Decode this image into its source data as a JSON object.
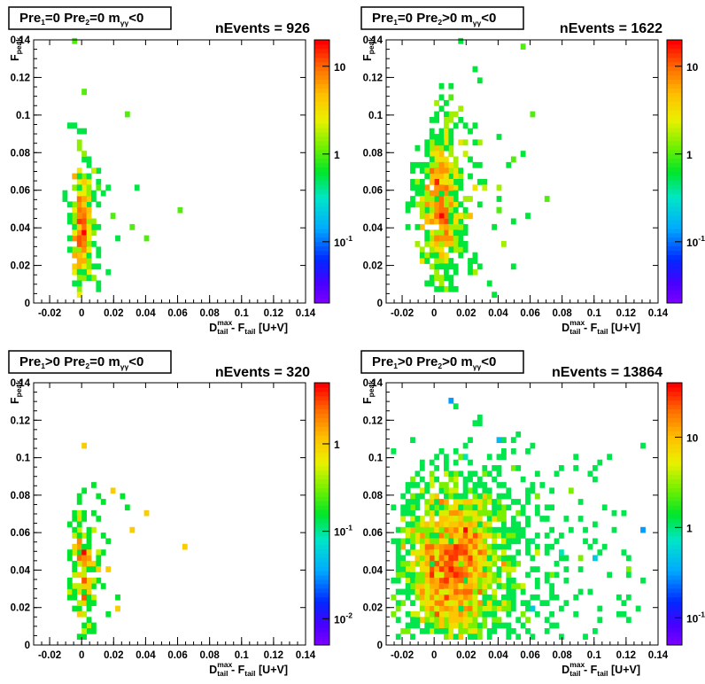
{
  "chart_data": [
    {
      "type": "heatmap",
      "title_parts": {
        "a": "Pre",
        "a_sub": "1",
        "b": "=0  Pre",
        "b_sub": "2",
        "c": "=0  m",
        "c_sub": "γγ",
        "d": "<0"
      },
      "nevents_label": "nEvents = 926",
      "xlabel": {
        "main": "D",
        "sub": "tail",
        "sup": "max",
        "rest": " - F",
        "sub2": "tail",
        "tail": " [U+V]"
      },
      "ylabel": {
        "main": "F",
        "sub": "peak"
      },
      "xlim": [
        -0.03,
        0.14
      ],
      "ylim": [
        0,
        0.14
      ],
      "x_ticks": [
        "-0.02",
        "0",
        "0.02",
        "0.04",
        "0.06",
        "0.08",
        "0.1",
        "0.12",
        "0.14"
      ],
      "y_ticks": [
        "0",
        "0.02",
        "0.04",
        "0.06",
        "0.08",
        "0.1",
        "0.12",
        "0.14"
      ],
      "z_ticks": [
        "10",
        "1",
        "10-1"
      ],
      "z_range": [
        0.02,
        20
      ],
      "bins": [
        [
          0.0,
          0.04,
          10
        ],
        [
          0.0,
          0.035,
          10
        ],
        [
          -0.002,
          0.045,
          8
        ],
        [
          0.002,
          0.03,
          8
        ],
        [
          0.0,
          0.055,
          6
        ],
        [
          -0.002,
          0.025,
          5
        ],
        [
          0.004,
          0.05,
          5
        ],
        [
          0.002,
          0.065,
          4
        ],
        [
          0.006,
          0.04,
          3
        ],
        [
          0.008,
          0.07,
          2
        ],
        [
          0.012,
          0.06,
          1
        ],
        [
          0.02,
          0.045,
          1
        ],
        [
          0.03,
          0.04,
          1
        ],
        [
          0.06,
          0.05,
          1
        ],
        [
          -0.004,
          0.138,
          1
        ],
        [
          0.0,
          0.112,
          1
        ],
        [
          0.028,
          0.1,
          1
        ],
        [
          0.04,
          0.035,
          1
        ]
      ]
    },
    {
      "type": "heatmap",
      "title_parts": {
        "a": "Pre",
        "a_sub": "1",
        "b": "=0  Pre",
        "b_sub": "2",
        "c": ">0  m",
        "c_sub": "γγ",
        "d": "<0"
      },
      "nevents_label": "nEvents = 1622",
      "xlabel": {
        "main": "D",
        "sub": "tail",
        "sup": "max",
        "rest": " - F",
        "sub2": "tail",
        "tail": " [U+V]"
      },
      "ylabel": {
        "main": "F",
        "sub": "peak"
      },
      "xlim": [
        -0.03,
        0.14
      ],
      "ylim": [
        0,
        0.14
      ],
      "x_ticks": [
        "-0.02",
        "0",
        "0.02",
        "0.04",
        "0.06",
        "0.08",
        "0.1",
        "0.12",
        "0.14"
      ],
      "y_ticks": [
        "0",
        "0.02",
        "0.04",
        "0.06",
        "0.08",
        "0.1",
        "0.12",
        "0.14"
      ],
      "z_ticks": [
        "10",
        "1",
        "10-1"
      ],
      "z_range": [
        0.02,
        20
      ],
      "bins": [
        [
          0.004,
          0.05,
          10
        ],
        [
          0.0,
          0.045,
          10
        ],
        [
          0.006,
          0.06,
          8
        ],
        [
          0.002,
          0.035,
          8
        ],
        [
          0.008,
          0.04,
          6
        ],
        [
          0.0,
          0.07,
          6
        ],
        [
          0.01,
          0.055,
          5
        ],
        [
          0.004,
          0.025,
          5
        ],
        [
          0.012,
          0.065,
          3
        ],
        [
          0.016,
          0.045,
          3
        ],
        [
          0.02,
          0.08,
          2
        ],
        [
          0.03,
          0.06,
          2
        ],
        [
          0.04,
          0.05,
          1
        ],
        [
          0.05,
          0.075,
          1
        ],
        [
          0.07,
          0.055,
          1
        ],
        [
          0.01,
          0.11,
          1
        ],
        [
          0.06,
          0.1,
          1
        ],
        [
          0.057,
          0.136,
          1
        ]
      ]
    },
    {
      "type": "heatmap",
      "title_parts": {
        "a": "Pre",
        "a_sub": "1",
        "b": ">0  Pre",
        "b_sub": "2",
        "c": "=0  m",
        "c_sub": "γγ",
        "d": "<0"
      },
      "nevents_label": "nEvents = 320",
      "xlabel": {
        "main": "D",
        "sub": "tail",
        "sup": "max",
        "rest": " - F",
        "sub2": "tail",
        "tail": " [U+V]"
      },
      "ylabel": {
        "main": "F",
        "sub": "peak"
      },
      "xlim": [
        -0.03,
        0.14
      ],
      "ylim": [
        0,
        0.14
      ],
      "x_ticks": [
        "-0.02",
        "0",
        "0.02",
        "0.04",
        "0.06",
        "0.08",
        "0.1",
        "0.12",
        "0.14"
      ],
      "y_ticks": [
        "0",
        "0.02",
        "0.04",
        "0.06",
        "0.08",
        "0.1",
        "0.12",
        "0.14"
      ],
      "z_ticks": [
        "1",
        "10-1",
        "10-2"
      ],
      "z_range": [
        0.005,
        5
      ],
      "bins": [
        [
          0.0,
          0.035,
          3
        ],
        [
          0.0,
          0.025,
          3
        ],
        [
          0.002,
          0.045,
          2
        ],
        [
          -0.002,
          0.055,
          2
        ],
        [
          0.004,
          0.03,
          1
        ],
        [
          0.006,
          0.05,
          1
        ],
        [
          0.01,
          0.04,
          1
        ],
        [
          0.016,
          0.04,
          1
        ],
        [
          0.02,
          0.083,
          1
        ],
        [
          0.03,
          0.06,
          1
        ],
        [
          0.04,
          0.07,
          1
        ],
        [
          0.064,
          0.053,
          1
        ],
        [
          0.002,
          0.105,
          1
        ],
        [
          0.022,
          0.02,
          1
        ]
      ]
    },
    {
      "type": "heatmap",
      "title_parts": {
        "a": "Pre",
        "a_sub": "1",
        "b": ">0  Pre",
        "b_sub": "2",
        "c": ">0  m",
        "c_sub": "γγ",
        "d": "<0"
      },
      "nevents_label": "nEvents = 13864",
      "xlabel": {
        "main": "D",
        "sub": "tail",
        "sup": "max",
        "rest": " - F",
        "sub2": "tail",
        "tail": " [U+V]"
      },
      "ylabel": {
        "main": "F",
        "sub": "peak"
      },
      "xlim": [
        -0.03,
        0.14
      ],
      "ylim": [
        0,
        0.14
      ],
      "x_ticks": [
        "-0.02",
        "0",
        "0.02",
        "0.04",
        "0.06",
        "0.08",
        "0.1",
        "0.12",
        "0.14"
      ],
      "y_ticks": [
        "0",
        "0.02",
        "0.04",
        "0.06",
        "0.08",
        "0.1",
        "0.12",
        "0.14"
      ],
      "z_ticks": [
        "10",
        "1",
        "10-1"
      ],
      "z_range": [
        0.05,
        40
      ],
      "bins": [
        [
          0.01,
          0.04,
          35
        ],
        [
          0.012,
          0.045,
          30
        ],
        [
          0.008,
          0.035,
          30
        ],
        [
          0.015,
          0.05,
          25
        ],
        [
          0.006,
          0.03,
          20
        ],
        [
          0.02,
          0.04,
          15
        ],
        [
          0.01,
          0.06,
          12
        ],
        [
          0.004,
          0.025,
          10
        ],
        [
          0.025,
          0.05,
          6
        ],
        [
          0.018,
          0.07,
          5
        ],
        [
          0.03,
          0.035,
          4
        ],
        [
          0.035,
          0.06,
          2
        ],
        [
          0.045,
          0.045,
          1.5
        ],
        [
          0.06,
          0.055,
          1
        ],
        [
          0.08,
          0.05,
          0.8
        ],
        [
          0.1,
          0.045,
          0.5
        ],
        [
          0.02,
          0.1,
          0.8
        ],
        [
          0.04,
          0.11,
          0.4
        ],
        [
          0.01,
          0.13,
          0.3
        ],
        [
          0.13,
          0.06,
          0.3
        ],
        [
          0.0,
          0.01,
          3
        ],
        [
          0.06,
          0.02,
          0.5
        ]
      ]
    }
  ]
}
